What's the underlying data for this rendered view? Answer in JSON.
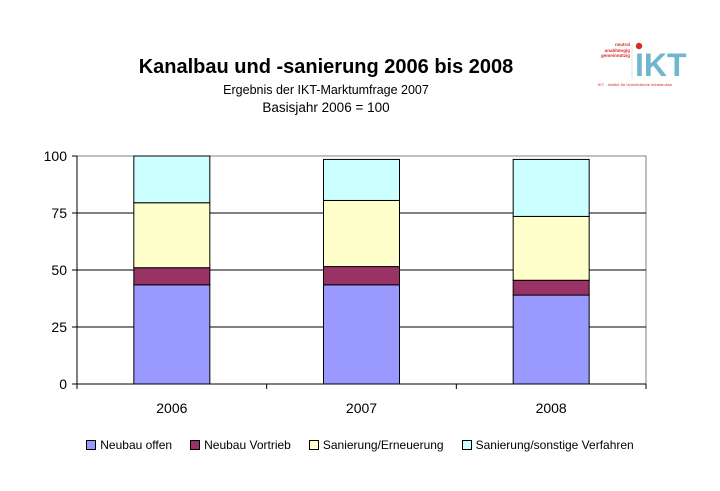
{
  "title": "Kanalbau und -sanierung 2006 bis 2008",
  "subtitle": "Ergebnis der IKT-Marktumfrage 2007",
  "subtitle2": "Basisjahr 2006 = 100",
  "logo": {
    "text_lines": [
      "neutral",
      "unabhängig",
      "gemeinnützig"
    ],
    "brand": "IKT",
    "caption": "IKT - Institut für Unterirdische Infrastruktur"
  },
  "chart_data": {
    "type": "bar",
    "stacked": true,
    "categories": [
      "2006",
      "2007",
      "2008"
    ],
    "series": [
      {
        "name": "Neubau offen",
        "color": "#9999ff",
        "values": [
          43.5,
          43.5,
          39
        ]
      },
      {
        "name": "Neubau Vortrieb",
        "color": "#993366",
        "values": [
          7.5,
          8,
          6.5
        ]
      },
      {
        "name": "Sanierung/Erneuerung",
        "color": "#ffffcc",
        "values": [
          28.5,
          29,
          28
        ]
      },
      {
        "name": "Sanierung/sonstige Verfahren",
        "color": "#ccffff",
        "values": [
          20.5,
          18,
          25
        ]
      }
    ],
    "ylim": [
      0,
      100
    ],
    "yticks": [
      0,
      25,
      50,
      75,
      100
    ],
    "grid": true,
    "legend_position": "bottom"
  }
}
